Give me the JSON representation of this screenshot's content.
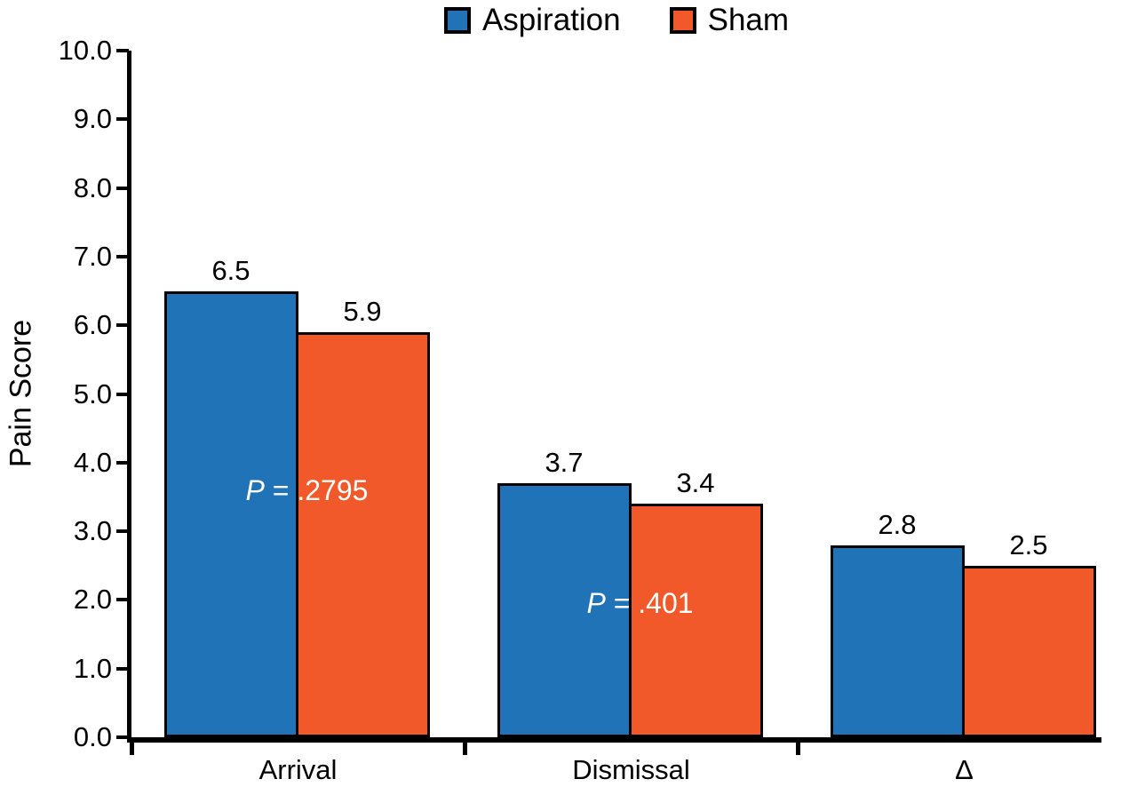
{
  "chart_data": {
    "type": "bar",
    "title": "",
    "xlabel": "",
    "ylabel": "Pain Score",
    "ylim": [
      0,
      10
    ],
    "ytick_step": 1,
    "grid": false,
    "legend_position": "top",
    "categories": [
      "Arrival",
      "Dismissal",
      "Δ"
    ],
    "series": [
      {
        "name": "Aspiration",
        "color": "#2173b7",
        "values": [
          6.5,
          3.7,
          2.8
        ]
      },
      {
        "name": "Sham",
        "color": "#f1592a",
        "values": [
          5.9,
          3.4,
          2.5
        ]
      }
    ],
    "annotations": [
      {
        "text": "P = .2795",
        "italic_prefix": "P",
        "rest": " = .2795",
        "group_index": 0,
        "y": 3.6,
        "color": "#ffffff"
      },
      {
        "text": "P = .401",
        "italic_prefix": "P",
        "rest": " = .401",
        "group_index": 1,
        "y": 1.95,
        "color": "#ffffff"
      }
    ],
    "bar_border_color": "#000000",
    "axis_color": "#000000"
  }
}
